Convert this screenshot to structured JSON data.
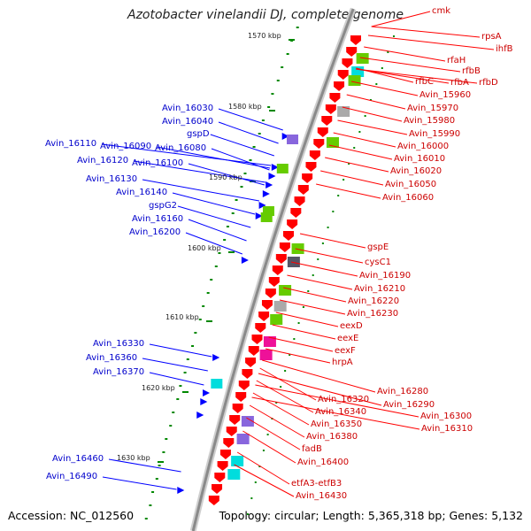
{
  "title": "Azotobacter vinelandii DJ, complete genome",
  "footer": {
    "accession": "Accession: NC_012560",
    "topology": "Topology: circular; Length: 5,365,318 bp; Genes: 5,132"
  },
  "colors": {
    "forward_genes": "#0000ff",
    "reverse_genes": "#ff0000",
    "cog_green": "#66cc00",
    "cog_cyan": "#00dddd",
    "cog_purple": "#8866dd",
    "cog_magenta": "#ee1199",
    "cog_gray": "#aaaaaa",
    "backbone": "#999999",
    "tick": "#008800"
  },
  "ruler": [
    "1570 kbp",
    "1580 kbp",
    "1590 kbp",
    "1600 kbp",
    "1610 kbp",
    "1620 kbp",
    "1630 kbp"
  ],
  "left_labels": [
    "Avin_16030",
    "Avin_16040",
    "gspD",
    "Avin_16110",
    "Avin_16090",
    "Avin_16080",
    "Avin_16120",
    "Avin_16100",
    "Avin_16130",
    "Avin_16140",
    "gspG2",
    "Avin_16160",
    "Avin_16200",
    "Avin_16330",
    "Avin_16360",
    "Avin_16370",
    "Avin_16460",
    "Avin_16490"
  ],
  "right_labels": [
    "cmk",
    "rpsA",
    "ihfB",
    "rfaH",
    "rfbB",
    "rfbC",
    "rfbA",
    "rfbD",
    "Avin_15960",
    "Avin_15970",
    "Avin_15980",
    "Avin_15990",
    "Avin_16000",
    "Avin_16010",
    "Avin_16020",
    "Avin_16050",
    "Avin_16060",
    "gspE",
    "cysC1",
    "Avin_16190",
    "Avin_16210",
    "Avin_16220",
    "Avin_16230",
    "eexD",
    "eexE",
    "eexF",
    "hrpA",
    "Avin_16280",
    "Avin_16290",
    "Avin_16300",
    "Avin_16310",
    "Avin_16320",
    "Avin_16340",
    "Avin_16350",
    "Avin_16380",
    "fadB",
    "Avin_16400",
    "etfA3-etfB3",
    "Avin_16430"
  ]
}
